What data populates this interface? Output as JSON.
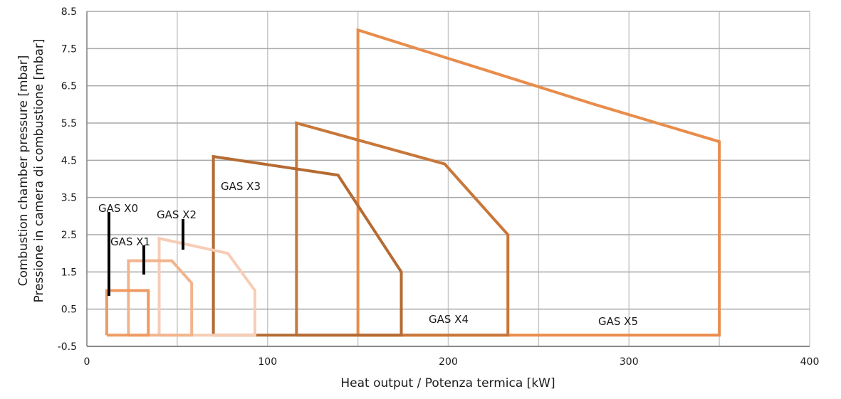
{
  "chart_data": {
    "type": "line",
    "title": "",
    "xlabel": "Heat output / Potenza termica [kW]",
    "ylabel": [
      "Combustion chamber pressure [mbar]",
      "Pressione in camera di combustione [mbar]"
    ],
    "xlim": [
      0,
      400
    ],
    "ylim": [
      -0.5,
      8.5
    ],
    "x_ticks": [
      0,
      100,
      200,
      300,
      400
    ],
    "y_ticks": [
      -0.5,
      0.5,
      1.5,
      2.5,
      3.5,
      4.5,
      5.5,
      6.5,
      7.5,
      8.5
    ],
    "x_tick_labels": [
      "0",
      "100",
      "200",
      "300",
      "400"
    ],
    "y_tick_labels": [
      "-0.5",
      "0.5",
      "1.5",
      "2.5",
      "3.5",
      "4.5",
      "5.5",
      "6.5",
      "7.5",
      "8.5"
    ],
    "grid": true,
    "series": [
      {
        "name": "GAS X0",
        "color": "#ef9a62",
        "points": [
          [
            11,
            -0.2
          ],
          [
            11,
            1.0
          ],
          [
            34,
            1.0
          ],
          [
            34,
            -0.2
          ],
          [
            11,
            -0.2
          ]
        ]
      },
      {
        "name": "GAS X1",
        "color": "#f2b48c",
        "points": [
          [
            23,
            -0.2
          ],
          [
            23,
            1.8
          ],
          [
            47,
            1.8
          ],
          [
            58,
            1.2
          ],
          [
            58,
            -0.2
          ],
          [
            23,
            -0.2
          ]
        ]
      },
      {
        "name": "GAS X2",
        "color": "#f6cdb6",
        "points": [
          [
            40,
            -0.2
          ],
          [
            40,
            2.4
          ],
          [
            78,
            2.0
          ],
          [
            93,
            1.0
          ],
          [
            93,
            -0.2
          ],
          [
            40,
            -0.2
          ]
        ]
      },
      {
        "name": "GAS X3",
        "color": "#b56b33",
        "points": [
          [
            70,
            -0.2
          ],
          [
            70,
            4.6
          ],
          [
            139,
            4.1
          ],
          [
            174,
            1.5
          ],
          [
            174,
            -0.2
          ],
          [
            70,
            -0.2
          ]
        ]
      },
      {
        "name": "GAS X4",
        "color": "#c8773a",
        "points": [
          [
            116,
            -0.2
          ],
          [
            116,
            5.5
          ],
          [
            198,
            4.4
          ],
          [
            233,
            2.5
          ],
          [
            233,
            -0.2
          ],
          [
            116,
            -0.2
          ]
        ]
      },
      {
        "name": "GAS X5",
        "color": "#e88d4c",
        "points": [
          [
            150,
            -0.2
          ],
          [
            150,
            8.0
          ],
          [
            281,
            6.0
          ],
          [
            350,
            5.0
          ],
          [
            350,
            -0.2
          ],
          [
            150,
            -0.2
          ]
        ]
      }
    ]
  }
}
